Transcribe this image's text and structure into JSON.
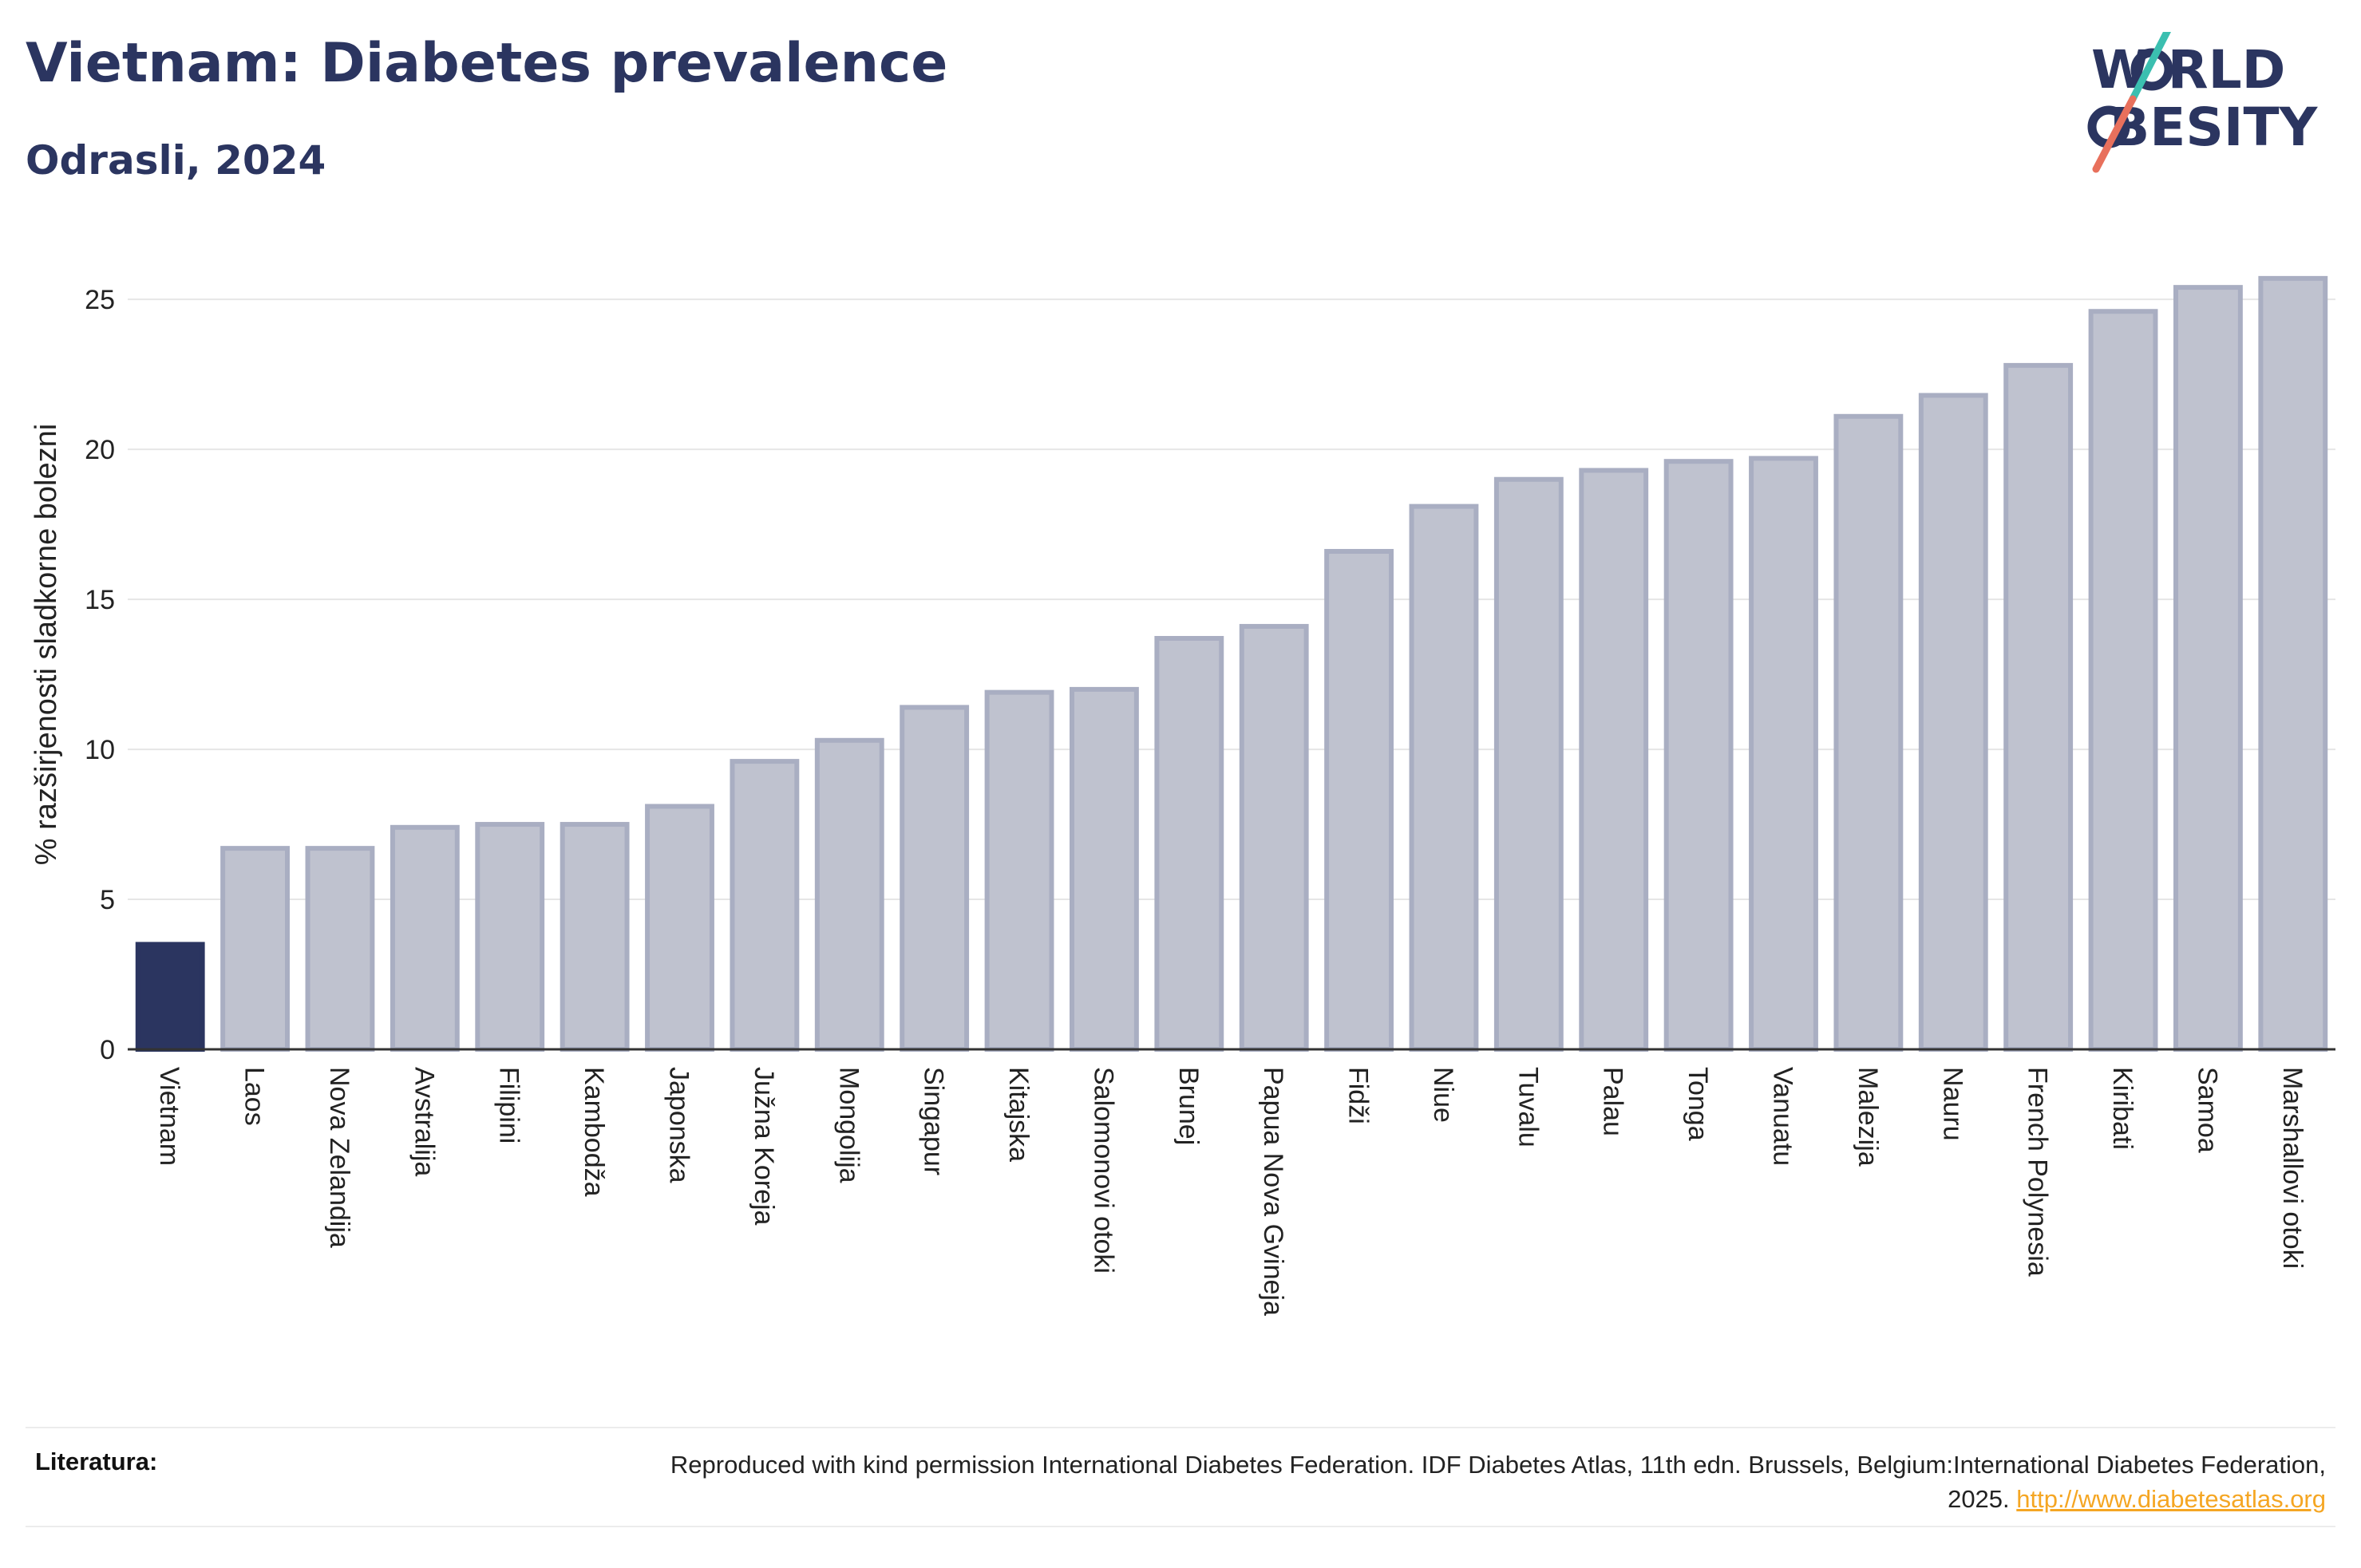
{
  "header": {
    "title": "Vietnam: Diabetes prevalence",
    "subtitle": "Odrasli, 2024"
  },
  "logo": {
    "line1": "WORLD",
    "line2": "OBESITY",
    "line1_pre": "W",
    "line1_post": "RLD",
    "line2_pre": "",
    "line2_post": "BESITY"
  },
  "footer": {
    "label": "Literatura:",
    "text": "Reproduced with kind permission International Diabetes Federation. IDF Diabetes Atlas, 11th edn. Brussels, Belgium:International Diabetes Federation, 2025.",
    "link": "http://www.diabetesatlas.org"
  },
  "colors": {
    "highlight": "#2b3560",
    "bar_fill": "#bfc2cf",
    "bar_stroke": "#a9aec2",
    "grid": "#e6e6e6",
    "axis": "#333333",
    "logo_teal": "#3bbfb0",
    "logo_coral": "#e8705c"
  },
  "chart_data": {
    "type": "bar",
    "title": "Vietnam: Diabetes prevalence",
    "subtitle": "Odrasli, 2024",
    "xlabel": "",
    "ylabel": "% razširjenosti sladkorne bolezni",
    "ylim": [
      0,
      27
    ],
    "yticks": [
      0,
      5,
      10,
      15,
      20,
      25
    ],
    "grid": true,
    "highlight": "Vietnam",
    "categories": [
      "Vietnam",
      "Laos",
      "Nova Zelandija",
      "Avstralija",
      "Filipini",
      "Kambodža",
      "Japonska",
      "Južna Koreja",
      "Mongolija",
      "Singapur",
      "Kitajska",
      "Salomonovi otoki",
      "Brunej",
      "Papua Nova Gvineja",
      "Fidži",
      "Niue",
      "Tuvalu",
      "Palau",
      "Tonga",
      "Vanuatu",
      "Malezija",
      "Nauru",
      "French Polynesia",
      "Kiribati",
      "Samoa",
      "Marshallovi otoki"
    ],
    "values": [
      3.5,
      6.7,
      6.7,
      7.4,
      7.5,
      7.5,
      8.1,
      9.6,
      10.3,
      11.4,
      11.9,
      12.0,
      13.7,
      14.1,
      16.6,
      18.1,
      19.0,
      19.3,
      19.6,
      19.7,
      21.1,
      21.8,
      22.8,
      24.6,
      25.4,
      25.7
    ]
  }
}
